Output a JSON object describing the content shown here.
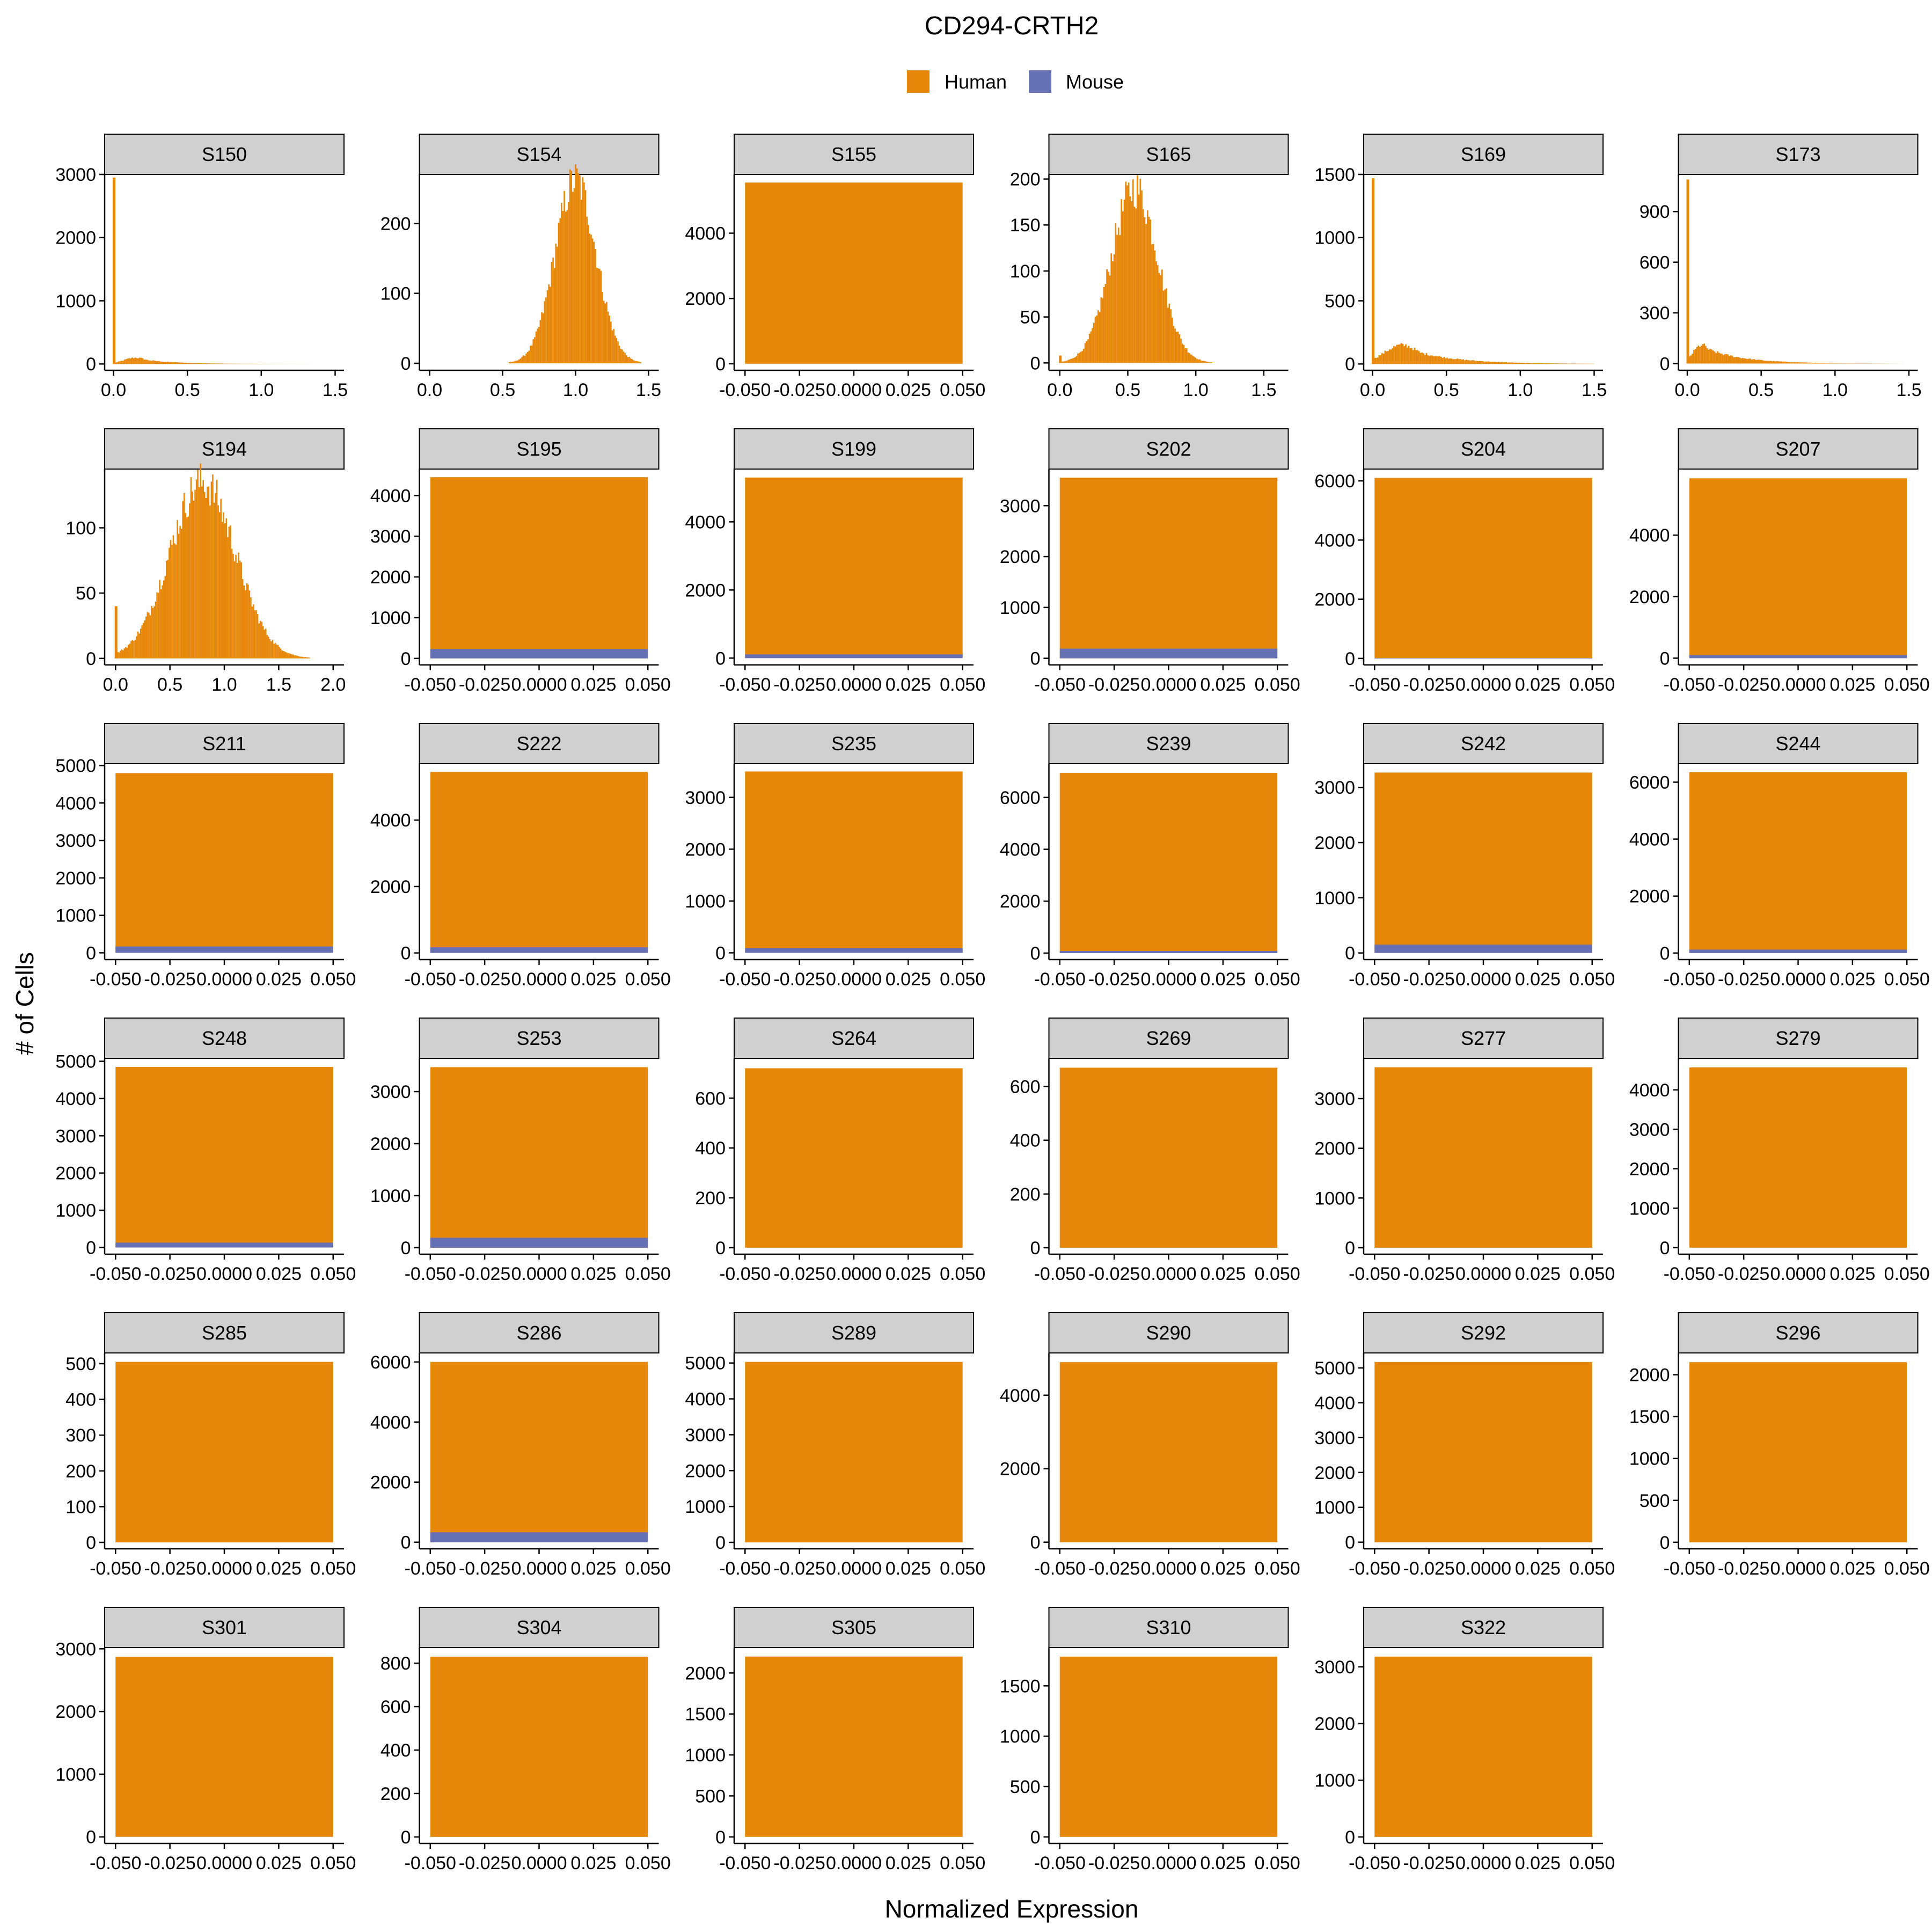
{
  "chart_data": {
    "type": "histogram-facets",
    "title": "CD294-CRTH2",
    "xlabel": "Normalized Expression",
    "ylabel": "# of Cells",
    "legend": {
      "placement": "top",
      "items": [
        {
          "name": "Human",
          "color": "#E6870A"
        },
        {
          "name": "Mouse",
          "color": "#6570B5"
        }
      ]
    },
    "colors": {
      "human": "#E6870A",
      "mouse": "#6570B5",
      "strip": "#D0D0D0"
    },
    "zero_x_ticks": [
      "-0.050",
      "-0.025",
      "0.0000",
      "0.025",
      "0.050"
    ],
    "zero_xlim": [
      -0.055,
      0.055
    ],
    "panels": [
      {
        "name": "S150",
        "kind": "dist",
        "ylim": [
          -100,
          3000
        ],
        "y_ticks": [
          0,
          1000,
          2000,
          3000
        ],
        "xlim": [
          -0.06,
          1.56
        ],
        "x_ticks": [
          "0.0",
          "0.5",
          "1.0",
          "1.5"
        ],
        "x_tick_values": [
          0,
          0.5,
          1.0,
          1.5
        ],
        "bins": 150,
        "spike": [
          0.0,
          2950
        ],
        "mode": 0.15,
        "sigma": 0.08,
        "tail": 0.22,
        "peak": 100,
        "xmax": 1.52
      },
      {
        "name": "S154",
        "kind": "dist",
        "ylim": [
          -10,
          270
        ],
        "y_ticks": [
          0,
          100,
          200
        ],
        "xlim": [
          -0.07,
          1.57
        ],
        "x_ticks": [
          "0.0",
          "0.5",
          "1.0",
          "1.5"
        ],
        "x_tick_values": [
          0,
          0.5,
          1.0,
          1.5
        ],
        "bins": 150,
        "spike": null,
        "mode": 1.0,
        "sigma": 0.14,
        "tail": 0,
        "peak": 262,
        "xmax": 1.45
      },
      {
        "name": "S155",
        "kind": "zero",
        "human": 5550,
        "mouse": 0,
        "ylim": [
          -200,
          5800
        ],
        "y_ticks": [
          0,
          2000,
          4000
        ]
      },
      {
        "name": "S165",
        "kind": "dist",
        "ylim": [
          -8,
          205
        ],
        "y_ticks": [
          0,
          50,
          100,
          150,
          200
        ],
        "xlim": [
          -0.08,
          1.68
        ],
        "x_ticks": [
          "0.0",
          "0.5",
          "1.0",
          "1.5"
        ],
        "x_tick_values": [
          0,
          0.5,
          1.0,
          1.5
        ],
        "bins": 150,
        "spike": [
          0.0,
          8
        ],
        "mode": 0.55,
        "sigma": 0.17,
        "tail": 0.05,
        "peak": 190,
        "xmax": 1.6
      },
      {
        "name": "S169",
        "kind": "dist",
        "ylim": [
          -50,
          1500
        ],
        "y_ticks": [
          0,
          500,
          1000,
          1500
        ],
        "xlim": [
          -0.06,
          1.56
        ],
        "x_ticks": [
          "0.0",
          "0.5",
          "1.0",
          "1.5"
        ],
        "x_tick_values": [
          0,
          0.5,
          1.0,
          1.5
        ],
        "bins": 150,
        "spike": [
          0.0,
          1470
        ],
        "mode": 0.2,
        "sigma": 0.12,
        "tail": 0.3,
        "peak": 150,
        "xmax": 1.5
      },
      {
        "name": "S173",
        "kind": "dist",
        "ylim": [
          -40,
          1120
        ],
        "y_ticks": [
          0,
          300,
          600,
          900
        ],
        "xlim": [
          -0.06,
          1.56
        ],
        "x_ticks": [
          "0.0",
          "0.5",
          "1.0",
          "1.5"
        ],
        "x_tick_values": [
          0,
          0.5,
          1.0,
          1.5
        ],
        "bins": 150,
        "spike": [
          0.0,
          1090
        ],
        "mode": 0.1,
        "sigma": 0.06,
        "tail": 0.25,
        "peak": 110,
        "xmax": 1.5
      },
      {
        "name": "S194",
        "kind": "dist",
        "ylim": [
          -5,
          145
        ],
        "y_ticks": [
          0,
          50,
          100
        ],
        "xlim": [
          -0.1,
          2.1
        ],
        "x_ticks": [
          "0.0",
          "0.5",
          "1.0",
          "1.5",
          "2.0"
        ],
        "x_tick_values": [
          0,
          0.5,
          1.0,
          1.5,
          2.0
        ],
        "bins": 160,
        "spike": [
          0.0,
          40
        ],
        "mode": 0.8,
        "sigma": 0.3,
        "tail": 0.1,
        "peak": 135,
        "xmax": 2.0
      },
      {
        "name": "S195",
        "kind": "zero",
        "human": 4450,
        "mouse": 230,
        "ylim": [
          -160,
          4650
        ],
        "y_ticks": [
          0,
          1000,
          2000,
          3000,
          4000
        ]
      },
      {
        "name": "S199",
        "kind": "zero",
        "human": 5300,
        "mouse": 110,
        "ylim": [
          -200,
          5550
        ],
        "y_ticks": [
          0,
          2000,
          4000
        ]
      },
      {
        "name": "S202",
        "kind": "zero",
        "human": 3550,
        "mouse": 190,
        "ylim": [
          -130,
          3720
        ],
        "y_ticks": [
          0,
          1000,
          2000,
          3000
        ]
      },
      {
        "name": "S204",
        "kind": "zero",
        "human": 6100,
        "mouse": 15,
        "ylim": [
          -220,
          6400
        ],
        "y_ticks": [
          0,
          2000,
          4000,
          6000
        ]
      },
      {
        "name": "S207",
        "kind": "zero",
        "human": 5850,
        "mouse": 100,
        "ylim": [
          -220,
          6150
        ],
        "y_ticks": [
          0,
          2000,
          4000
        ]
      },
      {
        "name": "S211",
        "kind": "zero",
        "human": 4800,
        "mouse": 170,
        "ylim": [
          -180,
          5050
        ],
        "y_ticks": [
          0,
          1000,
          2000,
          3000,
          4000,
          5000
        ]
      },
      {
        "name": "S222",
        "kind": "zero",
        "human": 5450,
        "mouse": 170,
        "ylim": [
          -200,
          5700
        ],
        "y_ticks": [
          0,
          2000,
          4000
        ]
      },
      {
        "name": "S235",
        "kind": "zero",
        "human": 3500,
        "mouse": 90,
        "ylim": [
          -130,
          3650
        ],
        "y_ticks": [
          0,
          1000,
          2000,
          3000
        ]
      },
      {
        "name": "S239",
        "kind": "zero",
        "human": 6950,
        "mouse": 80,
        "ylim": [
          -250,
          7300
        ],
        "y_ticks": [
          0,
          2000,
          4000,
          6000
        ]
      },
      {
        "name": "S242",
        "kind": "zero",
        "human": 3270,
        "mouse": 150,
        "ylim": [
          -120,
          3430
        ],
        "y_ticks": [
          0,
          1000,
          2000,
          3000
        ]
      },
      {
        "name": "S244",
        "kind": "zero",
        "human": 6350,
        "mouse": 120,
        "ylim": [
          -230,
          6650
        ],
        "y_ticks": [
          0,
          2000,
          4000,
          6000
        ]
      },
      {
        "name": "S248",
        "kind": "zero",
        "human": 4850,
        "mouse": 130,
        "ylim": [
          -180,
          5080
        ],
        "y_ticks": [
          0,
          1000,
          2000,
          3000,
          4000,
          5000
        ]
      },
      {
        "name": "S253",
        "kind": "zero",
        "human": 3470,
        "mouse": 190,
        "ylim": [
          -125,
          3640
        ],
        "y_ticks": [
          0,
          1000,
          2000,
          3000
        ]
      },
      {
        "name": "S264",
        "kind": "zero",
        "human": 720,
        "mouse": 0,
        "ylim": [
          -26,
          760
        ],
        "y_ticks": [
          0,
          200,
          400,
          600
        ]
      },
      {
        "name": "S269",
        "kind": "zero",
        "human": 670,
        "mouse": 0,
        "ylim": [
          -24,
          705
        ],
        "y_ticks": [
          0,
          200,
          400,
          600
        ]
      },
      {
        "name": "S277",
        "kind": "zero",
        "human": 3630,
        "mouse": 0,
        "ylim": [
          -130,
          3810
        ],
        "y_ticks": [
          0,
          1000,
          2000,
          3000
        ]
      },
      {
        "name": "S279",
        "kind": "zero",
        "human": 4570,
        "mouse": 0,
        "ylim": [
          -165,
          4800
        ],
        "y_ticks": [
          0,
          1000,
          2000,
          3000,
          4000
        ]
      },
      {
        "name": "S285",
        "kind": "zero",
        "human": 505,
        "mouse": 0,
        "ylim": [
          -18,
          530
        ],
        "y_ticks": [
          0,
          100,
          200,
          300,
          400,
          500
        ]
      },
      {
        "name": "S286",
        "kind": "zero",
        "human": 6000,
        "mouse": 330,
        "ylim": [
          -220,
          6300
        ],
        "y_ticks": [
          0,
          2000,
          4000,
          6000
        ]
      },
      {
        "name": "S289",
        "kind": "zero",
        "human": 5030,
        "mouse": 0,
        "ylim": [
          -180,
          5280
        ],
        "y_ticks": [
          0,
          1000,
          2000,
          3000,
          4000,
          5000
        ]
      },
      {
        "name": "S290",
        "kind": "zero",
        "human": 4900,
        "mouse": 0,
        "ylim": [
          -180,
          5150
        ],
        "y_ticks": [
          0,
          2000,
          4000
        ]
      },
      {
        "name": "S292",
        "kind": "zero",
        "human": 5170,
        "mouse": 0,
        "ylim": [
          -190,
          5430
        ],
        "y_ticks": [
          0,
          1000,
          2000,
          3000,
          4000,
          5000
        ]
      },
      {
        "name": "S296",
        "kind": "zero",
        "human": 2150,
        "mouse": 0,
        "ylim": [
          -78,
          2260
        ],
        "y_ticks": [
          0,
          500,
          1000,
          1500,
          2000
        ]
      },
      {
        "name": "S301",
        "kind": "zero",
        "human": 2870,
        "mouse": 0,
        "ylim": [
          -105,
          3020
        ],
        "y_ticks": [
          0,
          1000,
          2000,
          3000
        ]
      },
      {
        "name": "S304",
        "kind": "zero",
        "human": 830,
        "mouse": 0,
        "ylim": [
          -30,
          872
        ],
        "y_ticks": [
          0,
          200,
          400,
          600,
          800
        ]
      },
      {
        "name": "S305",
        "kind": "zero",
        "human": 2200,
        "mouse": 0,
        "ylim": [
          -80,
          2310
        ],
        "y_ticks": [
          0,
          500,
          1000,
          1500,
          2000
        ]
      },
      {
        "name": "S310",
        "kind": "zero",
        "human": 1790,
        "mouse": 0,
        "ylim": [
          -65,
          1880
        ],
        "y_ticks": [
          0,
          500,
          1000,
          1500
        ]
      },
      {
        "name": "S322",
        "kind": "zero",
        "human": 3180,
        "mouse": 0,
        "ylim": [
          -115,
          3340
        ],
        "y_ticks": [
          0,
          1000,
          2000,
          3000
        ]
      }
    ]
  }
}
